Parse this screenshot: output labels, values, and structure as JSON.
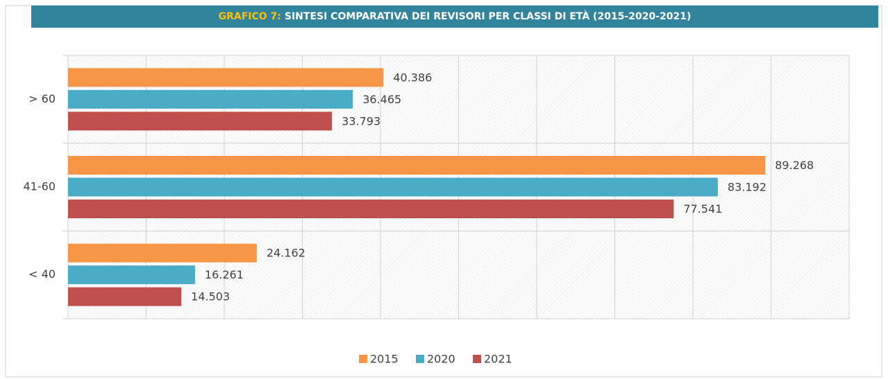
{
  "chart_data": {
    "type": "hbar",
    "title_prefix": "GRAFICO 7:",
    "title": "SINTESI COMPARATIVA DEI REVISORI PER CLASSI DI ETÀ (2015-2020-2021)",
    "categories": [
      "> 60",
      "41-60",
      "< 40"
    ],
    "series": [
      {
        "name": "2015",
        "color": "#f79646",
        "values": [
          40386,
          89268,
          24162
        ],
        "value_labels": [
          "40.386",
          "89.268",
          "24.162"
        ]
      },
      {
        "name": "2020",
        "color": "#4bacc6",
        "values": [
          36465,
          83192,
          16261
        ],
        "value_labels": [
          "36.465",
          "83.192",
          "16.261"
        ]
      },
      {
        "name": "2021",
        "color": "#c0504d",
        "values": [
          33793,
          77541,
          14503
        ],
        "value_labels": [
          "33.793",
          "77.541",
          "14.503"
        ]
      }
    ],
    "xlim": [
      0,
      100000
    ],
    "xticks": [
      0,
      10000,
      20000,
      30000,
      40000,
      50000,
      60000,
      70000,
      80000,
      90000,
      100000
    ],
    "grid": true,
    "legend": "bottom"
  }
}
